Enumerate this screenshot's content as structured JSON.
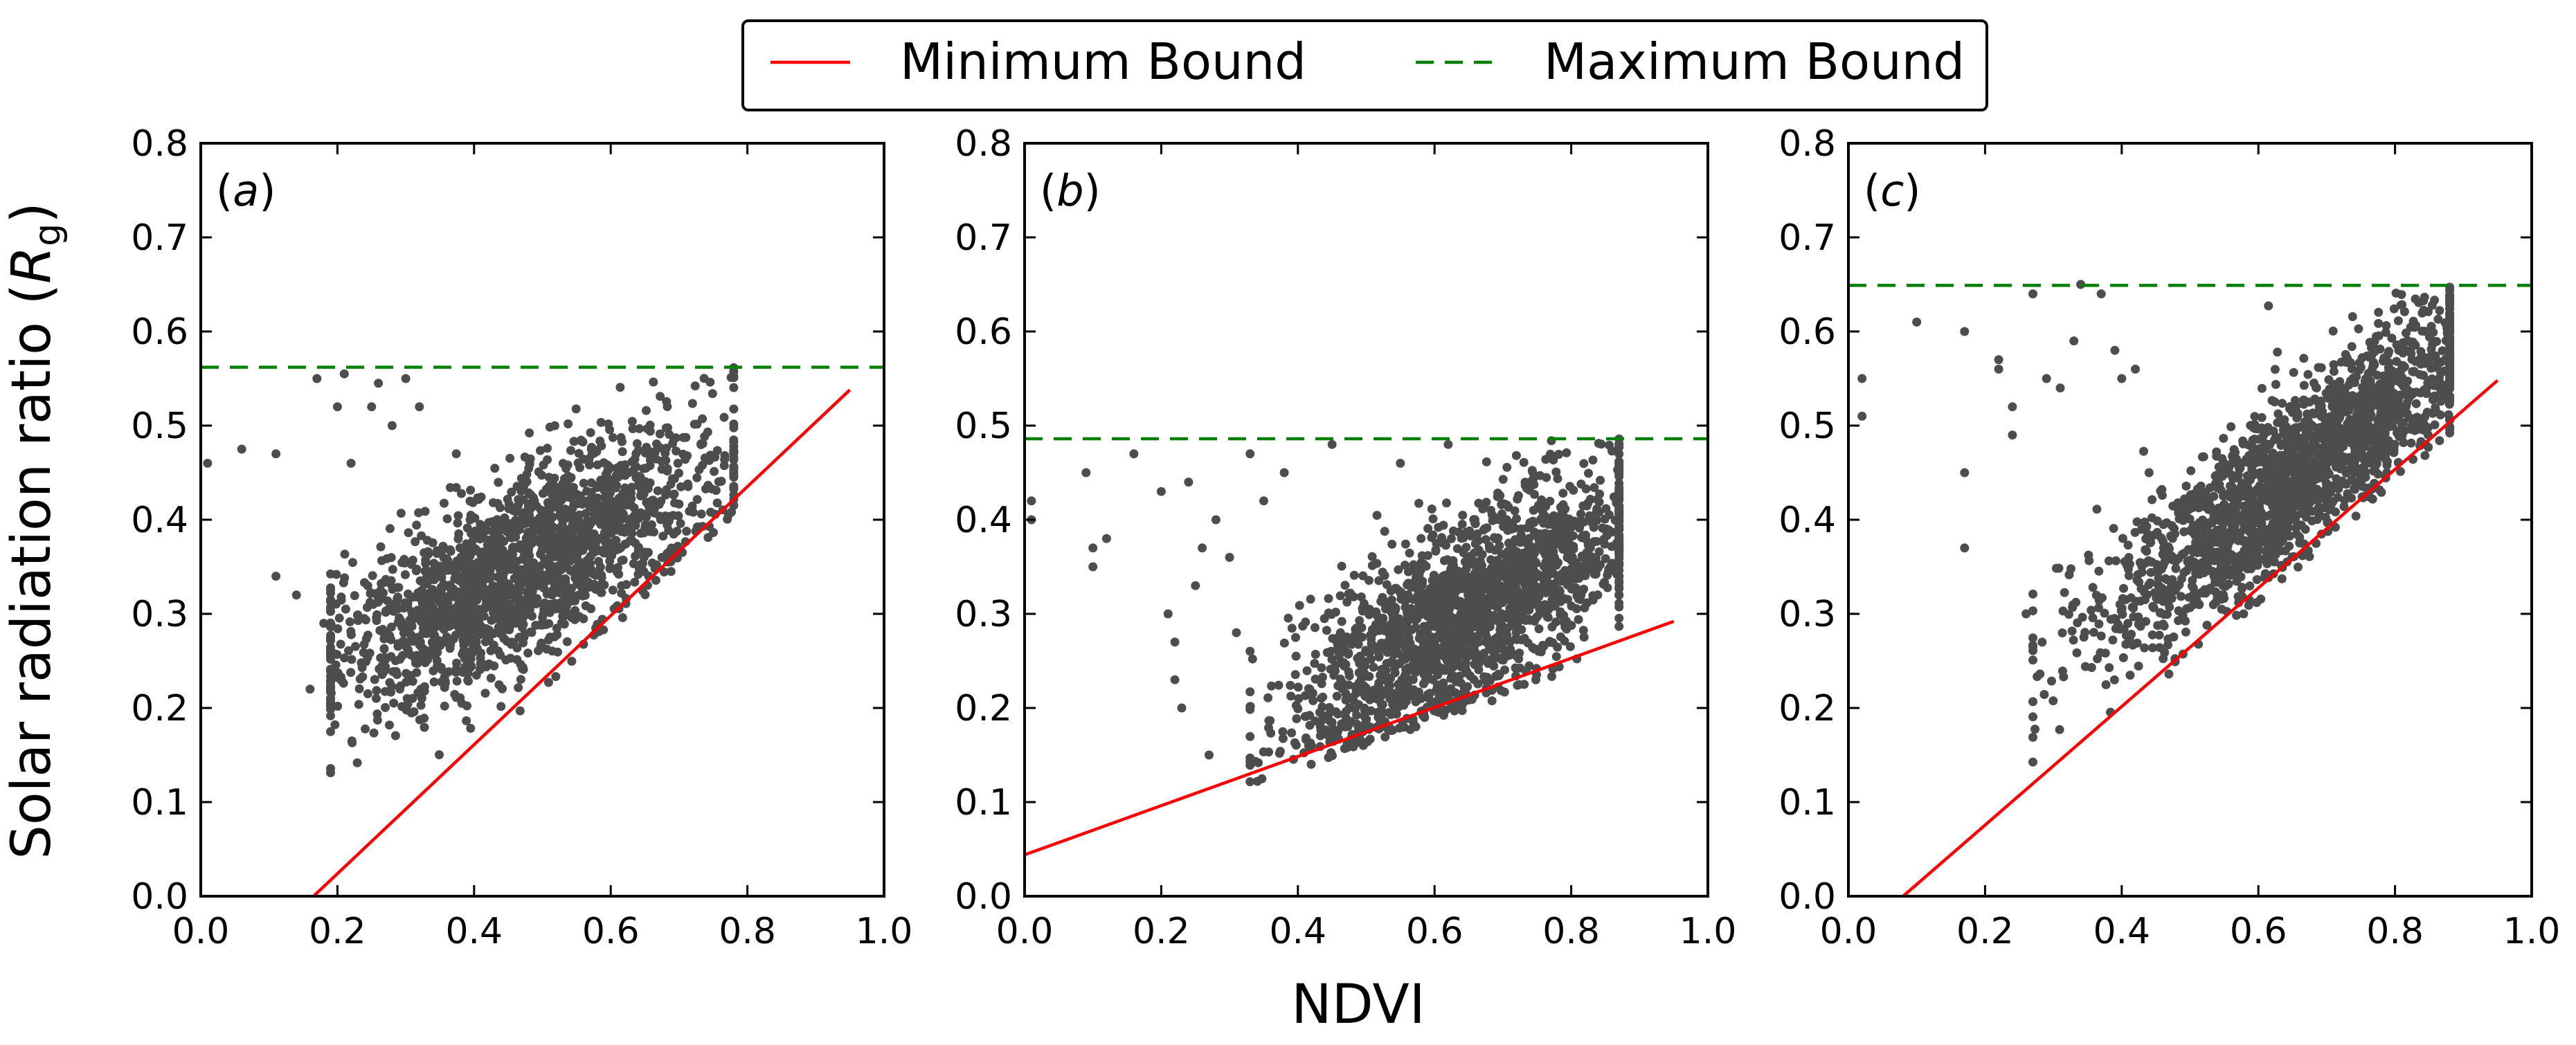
{
  "legend": {
    "min_label": "Minimum Bound",
    "max_label": "Maximum Bound",
    "min_color": "#ff0000",
    "max_color": "#007f00",
    "placement": "top-center"
  },
  "figure": {
    "xlabel": "NDVI",
    "ylabel_prefix": "Solar radiation ratio (",
    "ylabel_symbol": "R",
    "ylabel_subscript": "g",
    "ylabel_suffix": ")"
  },
  "chart_data": [
    {
      "type": "scatter",
      "panel": "a",
      "panel_label": "a",
      "xlim": [
        0.0,
        1.0
      ],
      "ylim": [
        0.0,
        0.8
      ],
      "xticks": [
        "0.0",
        "0.2",
        "0.4",
        "0.6",
        "0.8",
        "1.0"
      ],
      "yticks": [
        "0.0",
        "0.1",
        "0.2",
        "0.3",
        "0.4",
        "0.5",
        "0.6",
        "0.7",
        "0.8"
      ],
      "point_color": "#4d4d4d",
      "max_bound": 0.562,
      "min_bound": {
        "x": [
          0.165,
          0.95
        ],
        "y": [
          0.0,
          0.538
        ]
      },
      "cloud": {
        "x_range": [
          0.19,
          0.78
        ],
        "center_x": 0.47,
        "slope": 0.38,
        "intercept": 0.17,
        "spread": 0.052,
        "count": 1900
      },
      "outliers": [
        [
          0.01,
          0.46
        ],
        [
          0.06,
          0.475
        ],
        [
          0.11,
          0.47
        ],
        [
          0.11,
          0.34
        ],
        [
          0.14,
          0.32
        ],
        [
          0.17,
          0.55
        ],
        [
          0.18,
          0.29
        ],
        [
          0.2,
          0.52
        ],
        [
          0.21,
          0.555
        ],
        [
          0.16,
          0.22
        ],
        [
          0.25,
          0.52
        ],
        [
          0.26,
          0.545
        ],
        [
          0.3,
          0.55
        ],
        [
          0.22,
          0.46
        ],
        [
          0.28,
          0.5
        ],
        [
          0.32,
          0.52
        ]
      ]
    },
    {
      "type": "scatter",
      "panel": "b",
      "panel_label": "b",
      "xlim": [
        0.0,
        1.0
      ],
      "ylim": [
        0.0,
        0.8
      ],
      "xticks": [
        "0.0",
        "0.2",
        "0.4",
        "0.6",
        "0.8",
        "1.0"
      ],
      "yticks": [
        "0.0",
        "0.1",
        "0.2",
        "0.3",
        "0.4",
        "0.5",
        "0.6",
        "0.7",
        "0.8"
      ],
      "point_color": "#4d4d4d",
      "max_bound": 0.486,
      "min_bound": {
        "x": [
          0.0,
          0.95
        ],
        "y": [
          0.044,
          0.292
        ]
      },
      "cloud": {
        "x_range": [
          0.33,
          0.87
        ],
        "center_x": 0.65,
        "slope": 0.42,
        "intercept": 0.03,
        "spread": 0.05,
        "count": 1900
      },
      "outliers": [
        [
          0.01,
          0.42
        ],
        [
          0.01,
          0.4
        ],
        [
          0.09,
          0.45
        ],
        [
          0.1,
          0.37
        ],
        [
          0.1,
          0.35
        ],
        [
          0.12,
          0.38
        ],
        [
          0.16,
          0.47
        ],
        [
          0.2,
          0.43
        ],
        [
          0.21,
          0.3
        ],
        [
          0.22,
          0.27
        ],
        [
          0.22,
          0.23
        ],
        [
          0.23,
          0.2
        ],
        [
          0.24,
          0.44
        ],
        [
          0.25,
          0.33
        ],
        [
          0.26,
          0.37
        ],
        [
          0.27,
          0.15
        ],
        [
          0.28,
          0.4
        ],
        [
          0.3,
          0.36
        ],
        [
          0.31,
          0.28
        ],
        [
          0.33,
          0.47
        ],
        [
          0.35,
          0.42
        ],
        [
          0.38,
          0.45
        ],
        [
          0.45,
          0.48
        ],
        [
          0.55,
          0.46
        ],
        [
          0.62,
          0.48
        ]
      ]
    },
    {
      "type": "scatter",
      "panel": "c",
      "panel_label": "c",
      "xlim": [
        0.0,
        1.0
      ],
      "ylim": [
        0.0,
        0.8
      ],
      "xticks": [
        "0.0",
        "0.2",
        "0.4",
        "0.6",
        "0.8",
        "1.0"
      ],
      "yticks": [
        "0.0",
        "0.1",
        "0.2",
        "0.3",
        "0.4",
        "0.5",
        "0.6",
        "0.7",
        "0.8"
      ],
      "point_color": "#4d4d4d",
      "max_bound": 0.649,
      "min_bound": {
        "x": [
          0.08,
          0.95
        ],
        "y": [
          0.0,
          0.548
        ]
      },
      "cloud": {
        "x_range": [
          0.27,
          0.88
        ],
        "center_x": 0.65,
        "slope": 0.55,
        "intercept": 0.09,
        "spread": 0.045,
        "count": 1900
      },
      "outliers": [
        [
          0.02,
          0.55
        ],
        [
          0.02,
          0.51
        ],
        [
          0.1,
          0.61
        ],
        [
          0.17,
          0.6
        ],
        [
          0.17,
          0.45
        ],
        [
          0.17,
          0.37
        ],
        [
          0.22,
          0.57
        ],
        [
          0.22,
          0.56
        ],
        [
          0.24,
          0.52
        ],
        [
          0.24,
          0.49
        ],
        [
          0.26,
          0.3
        ],
        [
          0.27,
          0.64
        ],
        [
          0.29,
          0.55
        ],
        [
          0.31,
          0.54
        ],
        [
          0.33,
          0.59
        ],
        [
          0.34,
          0.65
        ],
        [
          0.37,
          0.64
        ],
        [
          0.39,
          0.58
        ],
        [
          0.4,
          0.55
        ],
        [
          0.42,
          0.56
        ],
        [
          0.44,
          0.45
        ]
      ]
    }
  ]
}
